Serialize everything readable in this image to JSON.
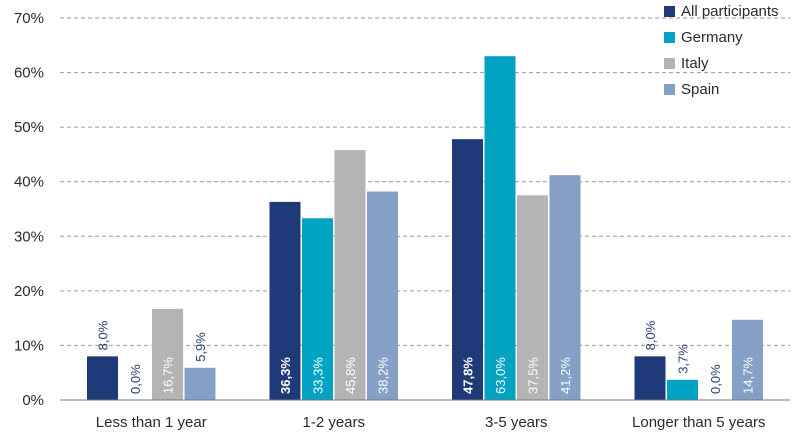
{
  "chart_data": {
    "type": "bar",
    "categories": [
      "Less than 1 year",
      "1-2 years",
      "3-5 years",
      "Longer than 5 years"
    ],
    "series": [
      {
        "name": "All participants",
        "color": "#1f3a78",
        "values": [
          8.0,
          36.3,
          47.8,
          8.0
        ],
        "labels": [
          "8,0%",
          "36,3%",
          "47,8%",
          "8,0%"
        ]
      },
      {
        "name": "Germany",
        "color": "#00a3c2",
        "values": [
          0.0,
          33.3,
          63.0,
          3.7
        ],
        "labels": [
          "0,0%",
          "33,3%",
          "63,0%",
          "3,7%"
        ]
      },
      {
        "name": "Italy",
        "color": "#b4b4b4",
        "values": [
          16.7,
          45.8,
          37.5,
          0.0
        ],
        "labels": [
          "16,7%",
          "45,8%",
          "37,5%",
          "0,0%"
        ]
      },
      {
        "name": "Spain",
        "color": "#84a0c6",
        "values": [
          5.9,
          38.2,
          41.2,
          14.7
        ],
        "labels": [
          "5,9%",
          "38,2%",
          "41,2%",
          "14,7%"
        ]
      }
    ],
    "y_ticks": [
      "0%",
      "10%",
      "20%",
      "30%",
      "40%",
      "50%",
      "60%",
      "70%"
    ],
    "ylim": [
      0,
      70
    ],
    "grid": true,
    "grid_style": "dashed",
    "legend_position": "top-right",
    "title": "",
    "xlabel": "",
    "ylabel": ""
  }
}
